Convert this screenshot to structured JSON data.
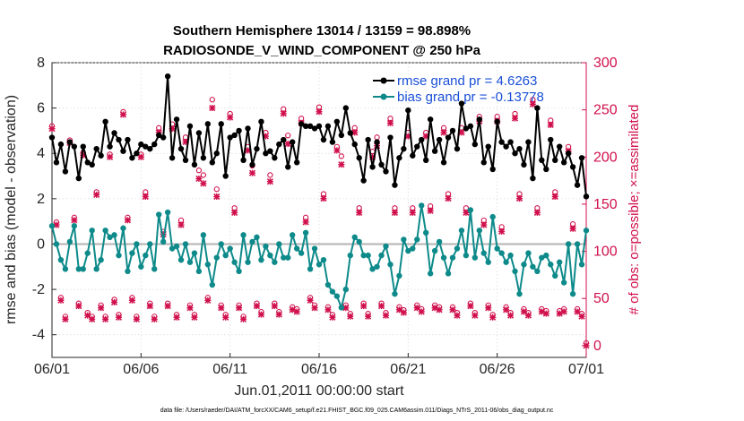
{
  "chart_data": {
    "type": "line",
    "title": "Southern Hemisphere 13014 / 13159 = 98.898%",
    "subtitle": "RADIOSONDE_V_WIND_COMPONENT @ 250 hPa",
    "xlabel": "Jun.01,2011 00:00:00 start",
    "ylabel": "rmse and bias (model - observation)",
    "ylabel_right": "# of obs: o=possible; ×=assimilated",
    "xlim": [
      0,
      30
    ],
    "ylim": [
      -5,
      8
    ],
    "ylim_right": [
      -12.5,
      300
    ],
    "x_ticks": [
      0,
      5,
      10,
      15,
      20,
      25,
      30
    ],
    "x_tick_labels": [
      "06/01",
      "06/06",
      "06/11",
      "06/16",
      "06/21",
      "06/26",
      "07/01"
    ],
    "y_ticks": [
      -4,
      -2,
      0,
      2,
      4,
      6,
      8
    ],
    "y_tick_labels": [
      "-4",
      "-2",
      "0",
      "2",
      "4",
      "6",
      "8"
    ],
    "y_ticks_right": [
      0,
      50,
      100,
      150,
      200,
      250,
      300
    ],
    "y_tick_labels_right": [
      "0",
      "50",
      "100",
      "150",
      "200",
      "250",
      "300"
    ],
    "footnote": "data file: /Users/raeder/DAI/ATM_forcXX/CAM6_setup/f.e21.FHIST_BGC.f09_025.CAM6assim.011/Diags_NTrS_2011-06/obs_diag_output.nc",
    "colors": {
      "rmse": "#000000",
      "bias": "#0e8a8a",
      "obs": "#d0104c",
      "zero_line": "#b3b3b3",
      "legend_text": "#1a4fd6"
    },
    "series": [
      {
        "name": "rmse grand pr = 4.6263",
        "axis": "left",
        "marker": "filled-circle",
        "x": [
          0,
          0.25,
          0.5,
          0.75,
          1,
          1.25,
          1.5,
          1.75,
          2,
          2.25,
          2.5,
          2.75,
          3,
          3.25,
          3.5,
          3.75,
          4,
          4.25,
          4.5,
          4.75,
          5,
          5.25,
          5.5,
          5.75,
          6,
          6.25,
          6.5,
          6.75,
          7,
          7.25,
          7.5,
          7.75,
          8,
          8.25,
          8.5,
          8.75,
          9,
          9.25,
          9.5,
          9.75,
          10,
          10.25,
          10.5,
          10.75,
          11,
          11.25,
          11.5,
          11.75,
          12,
          12.25,
          12.5,
          12.75,
          13,
          13.25,
          13.5,
          13.75,
          14,
          14.25,
          14.5,
          14.75,
          15,
          15.25,
          15.5,
          15.75,
          16,
          16.25,
          16.5,
          16.75,
          17,
          17.25,
          17.5,
          17.75,
          18,
          18.25,
          18.5,
          18.75,
          19,
          19.25,
          19.5,
          19.75,
          20,
          20.25,
          20.5,
          20.75,
          21,
          21.25,
          21.5,
          21.75,
          22,
          22.25,
          22.5,
          22.75,
          23,
          23.25,
          23.5,
          23.75,
          24,
          24.25,
          24.5,
          24.75,
          25,
          25.25,
          25.5,
          25.75,
          26,
          26.25,
          26.5,
          26.75,
          27,
          27.25,
          27.5,
          27.75,
          28,
          28.25,
          28.5,
          28.75,
          29,
          29.25,
          29.5,
          29.75,
          30
        ],
        "values": [
          4.7,
          3.6,
          4.4,
          3.2,
          4.5,
          4.3,
          2.9,
          4.3,
          3.6,
          3.5,
          4.2,
          3.9,
          5.4,
          4.3,
          4.9,
          4.6,
          4.1,
          4.6,
          3.8,
          4,
          4.4,
          4.3,
          4.2,
          4.4,
          4.8,
          4.7,
          7.4,
          3.8,
          5.5,
          4.2,
          3.7,
          5.2,
          3.5,
          4.9,
          3.8,
          5.3,
          3.6,
          4,
          5.3,
          3,
          4.7,
          4.8,
          5,
          3.7,
          5.1,
          3.5,
          4.2,
          5.4,
          4,
          4.1,
          3.8,
          4.4,
          4.6,
          3.4,
          4.5,
          3.6,
          5.3,
          5.2,
          5.2,
          5.1,
          5.2,
          4.6,
          5.2,
          4.5,
          5.4,
          4.8,
          6,
          4.9,
          4.4,
          3.8,
          2.8,
          4.6,
          3.4,
          4.5,
          3.5,
          3.2,
          4.7,
          2.6,
          3.8,
          4.2,
          5.9,
          3.9,
          4.3,
          4.6,
          3.7,
          5.5,
          4.1,
          4.6,
          3.6,
          4.7,
          5,
          4.2,
          6.2,
          5.1,
          5.2,
          4.4,
          5.5,
          3.6,
          4.3,
          3.3,
          5.4,
          4.5,
          4.3,
          4.5,
          4,
          4.2,
          3.5,
          4.5,
          2.9,
          6,
          3.7,
          3.3,
          4.6,
          3.7,
          4.3,
          3.6,
          4,
          3.4,
          2.6,
          3.8,
          2.1
        ]
      },
      {
        "name": "bias grand pr = -0.13778",
        "axis": "left",
        "marker": "filled-circle",
        "x": [
          0,
          0.25,
          0.5,
          0.75,
          1,
          1.25,
          1.5,
          1.75,
          2,
          2.25,
          2.5,
          2.75,
          3,
          3.25,
          3.5,
          3.75,
          4,
          4.25,
          4.5,
          4.75,
          5,
          5.25,
          5.5,
          5.75,
          6,
          6.25,
          6.5,
          6.75,
          7,
          7.25,
          7.5,
          7.75,
          8,
          8.25,
          8.5,
          8.75,
          9,
          9.25,
          9.5,
          9.75,
          10,
          10.25,
          10.5,
          10.75,
          11,
          11.25,
          11.5,
          11.75,
          12,
          12.25,
          12.5,
          12.75,
          13,
          13.25,
          13.5,
          13.75,
          14,
          14.25,
          14.5,
          14.75,
          15,
          15.25,
          15.5,
          15.75,
          16,
          16.25,
          16.5,
          16.75,
          17,
          17.25,
          17.5,
          17.75,
          18,
          18.25,
          18.5,
          18.75,
          19,
          19.25,
          19.5,
          19.75,
          20,
          20.25,
          20.5,
          20.75,
          21,
          21.25,
          21.5,
          21.75,
          22,
          22.25,
          22.5,
          22.75,
          23,
          23.25,
          23.5,
          23.75,
          24,
          24.25,
          24.5,
          24.75,
          25,
          25.25,
          25.5,
          25.75,
          26,
          26.25,
          26.5,
          26.75,
          27,
          27.25,
          27.5,
          27.75,
          28,
          28.25,
          28.5,
          28.75,
          29,
          29.25,
          29.5,
          29.75,
          30
        ],
        "values": [
          0.8,
          0,
          -0.7,
          -1.1,
          0.1,
          0.8,
          -1.1,
          -1.1,
          -0.4,
          0.6,
          -1.1,
          -0.7,
          0.6,
          0.3,
          0.4,
          -0.5,
          0.7,
          -1.2,
          -0.4,
          0,
          -1,
          -0.5,
          0,
          -1.1,
          1.3,
          0.1,
          1.4,
          -0.2,
          -0.1,
          -0.7,
          0,
          -0.8,
          -0.4,
          -1.2,
          0.4,
          -0.9,
          -1.8,
          -0.6,
          0,
          -0.5,
          -0.2,
          -0.8,
          -1.2,
          0.4,
          -0.8,
          0.1,
          0.3,
          -0.7,
          -0.1,
          -0.5,
          -0.8,
          0,
          -0.6,
          -0.6,
          0.4,
          -0.2,
          -0.4,
          0.5,
          -1.1,
          -0.2,
          -0.9,
          -0.7,
          -1.8,
          -2.1,
          -2.3,
          -2.8,
          -2,
          -0.5,
          0.3,
          0.1,
          -0.5,
          -0.5,
          -1.1,
          -1,
          -0.5,
          -0.1,
          -0.9,
          -2.2,
          -1.4,
          0.2,
          -0.3,
          -0.2,
          0.2,
          1.7,
          0.5,
          -1.3,
          -0.3,
          0.1,
          -0.6,
          -1.3,
          -0.6,
          -0.2,
          0.6,
          -0.5,
          1.5,
          -0.6,
          0.6,
          -0.4,
          -0.8,
          1.2,
          -0.2,
          -0.4,
          -0.8,
          -0.5,
          -1.2,
          -2.2,
          -0.9,
          -0.4,
          -1,
          -1.2,
          -0.6,
          -0.5,
          -0.9,
          -1.4,
          -0.8,
          -1.7,
          0,
          -2.2,
          0,
          -0.9,
          0.6
        ]
      },
      {
        "name": "possible (o)",
        "axis": "right",
        "marker": "circle",
        "x": [
          0,
          0.25,
          0.5,
          0.75,
          1,
          1.25,
          1.5,
          1.75,
          2,
          2.25,
          2.5,
          2.75,
          3,
          3.25,
          3.5,
          3.75,
          4,
          4.25,
          4.5,
          4.75,
          5,
          5.25,
          5.5,
          5.75,
          6,
          6.25,
          6.5,
          6.75,
          7,
          7.25,
          7.5,
          7.75,
          8,
          8.25,
          8.5,
          8.75,
          9,
          9.25,
          9.5,
          9.75,
          10,
          10.25,
          10.5,
          10.75,
          11,
          11.25,
          11.5,
          11.75,
          12,
          12.25,
          12.5,
          12.75,
          13,
          13.25,
          13.5,
          13.75,
          14,
          14.25,
          14.5,
          14.75,
          15,
          15.25,
          15.5,
          15.75,
          16,
          16.25,
          16.5,
          16.75,
          17,
          17.25,
          17.5,
          17.75,
          18,
          18.25,
          18.5,
          18.75,
          19,
          19.25,
          19.5,
          19.75,
          20,
          20.25,
          20.5,
          20.75,
          21,
          21.25,
          21.5,
          21.75,
          22,
          22.25,
          22.5,
          22.75,
          23,
          23.25,
          23.5,
          23.75,
          24,
          24.25,
          24.5,
          24.75,
          25,
          25.25,
          25.5,
          25.75,
          26,
          26.25,
          26.5,
          26.75,
          27,
          27.25,
          27.5,
          27.75,
          28,
          28.25,
          28.5,
          28.75,
          29,
          29.25,
          29.5,
          29.75,
          30
        ],
        "values": [
          230,
          128,
          48,
          28,
          215,
          133,
          42,
          202,
          32,
          28,
          160,
          40,
          28,
          200,
          46,
          30,
          245,
          133,
          48,
          28,
          200,
          160,
          42,
          28,
          228,
          118,
          42,
          232,
          30,
          130,
          218,
          40,
          30,
          183,
          178,
          48,
          258,
          163,
          40,
          30,
          243,
          143,
          40,
          28,
          208,
          188,
          42,
          33,
          223,
          178,
          42,
          33,
          248,
          220,
          38,
          36,
          238,
          133,
          48,
          40,
          250,
          158,
          38,
          30,
          208,
          198,
          40,
          31,
          228,
          143,
          42,
          31,
          203,
          218,
          42,
          32,
          238,
          143,
          38,
          35,
          223,
          143,
          40,
          36,
          223,
          145,
          40,
          38,
          228,
          158,
          38,
          32,
          228,
          143,
          42,
          32,
          240,
          130,
          40,
          30,
          240,
          123,
          38,
          32,
          243,
          158,
          36,
          32,
          258,
          143,
          36,
          34,
          236,
          160,
          34,
          36,
          208,
          126,
          36,
          31,
          0
        ]
      },
      {
        "name": "assimilated (×)",
        "axis": "right",
        "marker": "x",
        "x": [
          0,
          0.25,
          0.5,
          0.75,
          1,
          1.25,
          1.5,
          1.75,
          2,
          2.25,
          2.5,
          2.75,
          3,
          3.25,
          3.5,
          3.75,
          4,
          4.25,
          4.5,
          4.75,
          5,
          5.25,
          5.5,
          5.75,
          6,
          6.25,
          6.5,
          6.75,
          7,
          7.25,
          7.5,
          7.75,
          8,
          8.25,
          8.5,
          8.75,
          9,
          9.25,
          9.5,
          9.75,
          10,
          10.25,
          10.5,
          10.75,
          11,
          11.25,
          11.5,
          11.75,
          12,
          12.25,
          12.5,
          12.75,
          13,
          13.25,
          13.5,
          13.75,
          14,
          14.25,
          14.5,
          14.75,
          15,
          15.25,
          15.5,
          15.75,
          16,
          16.25,
          16.5,
          16.75,
          17,
          17.25,
          17.5,
          17.75,
          18,
          18.25,
          18.5,
          18.75,
          19,
          19.25,
          19.5,
          19.75,
          20,
          20.25,
          20.5,
          20.75,
          21,
          21.25,
          21.5,
          21.75,
          22,
          22.25,
          22.5,
          22.75,
          23,
          23.25,
          23.5,
          23.75,
          24,
          24.25,
          24.5,
          24.75,
          25,
          25.25,
          25.5,
          25.75,
          26,
          26.25,
          26.5,
          26.75,
          27,
          27.25,
          27.5,
          27.75,
          28,
          28.25,
          28.5,
          28.75,
          29,
          29.25,
          29.5,
          29.75,
          30
        ],
        "values": [
          230,
          128,
          48,
          28,
          215,
          133,
          42,
          202,
          32,
          28,
          160,
          40,
          28,
          200,
          46,
          30,
          245,
          133,
          48,
          28,
          200,
          158,
          42,
          28,
          226,
          118,
          42,
          230,
          30,
          128,
          216,
          40,
          30,
          177,
          172,
          48,
          252,
          158,
          40,
          30,
          242,
          141,
          40,
          28,
          207,
          183,
          42,
          33,
          222,
          174,
          42,
          33,
          246,
          214,
          38,
          36,
          236,
          131,
          48,
          40,
          248,
          156,
          38,
          30,
          207,
          192,
          40,
          31,
          226,
          141,
          42,
          31,
          200,
          212,
          42,
          32,
          236,
          141,
          38,
          35,
          222,
          141,
          40,
          36,
          222,
          143,
          40,
          38,
          226,
          156,
          38,
          32,
          226,
          141,
          42,
          32,
          238,
          128,
          40,
          30,
          238,
          121,
          38,
          32,
          241,
          156,
          36,
          32,
          256,
          141,
          36,
          34,
          234,
          158,
          34,
          36,
          206,
          124,
          36,
          31,
          0
        ]
      }
    ]
  }
}
